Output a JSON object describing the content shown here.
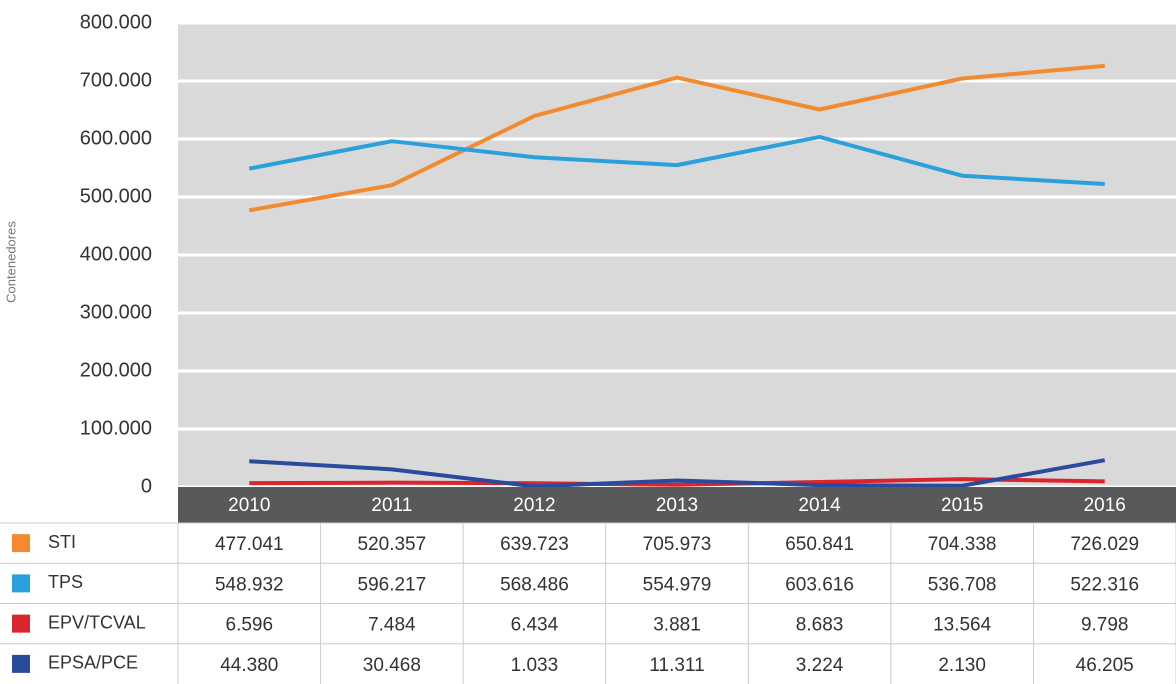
{
  "chart_data": {
    "type": "line",
    "y_label": "Contenedores",
    "categories": [
      "2010",
      "2011",
      "2012",
      "2013",
      "2014",
      "2015",
      "2016"
    ],
    "series": [
      {
        "name": "STI",
        "color": "#f28a30",
        "values": [
          477041,
          520357,
          639723,
          705973,
          650841,
          704338,
          726029
        ],
        "value_labels": [
          "477.041",
          "520.357",
          "639.723",
          "705.973",
          "650.841",
          "704.338",
          "726.029"
        ]
      },
      {
        "name": "TPS",
        "color": "#2aa0dc",
        "values": [
          548932,
          596217,
          568486,
          554979,
          603616,
          536708,
          522316
        ],
        "value_labels": [
          "548.932",
          "596.217",
          "568.486",
          "554.979",
          "603.616",
          "536.708",
          "522.316"
        ]
      },
      {
        "name": "EPV/TCVAL",
        "color": "#d9262e",
        "values": [
          6596,
          7484,
          6434,
          3881,
          8683,
          13564,
          9798
        ],
        "value_labels": [
          "6.596",
          "7.484",
          "6.434",
          "3.881",
          "8.683",
          "13.564",
          "9.798"
        ]
      },
      {
        "name": "EPSA/PCE",
        "color": "#2a4a9c",
        "values": [
          44380,
          30468,
          1033,
          11311,
          3224,
          2130,
          46205
        ],
        "value_labels": [
          "44.380",
          "30.468",
          "1.033",
          "11.311",
          "3.224",
          "2.130",
          "46.205"
        ]
      }
    ],
    "ylim": [
      0,
      800000
    ],
    "yticks": [
      0,
      {
        "value": 100000,
        "label": "100.000"
      },
      {
        "value": 200000,
        "label": "200.000"
      },
      {
        "value": 300000,
        "label": "300.000"
      },
      {
        "value": 400000,
        "label": "400.000"
      },
      {
        "value": 500000,
        "label": "500.000"
      },
      {
        "value": 600000,
        "label": "600.000"
      },
      {
        "value": 700000,
        "label": "700.000"
      },
      {
        "value": 800000,
        "label": "800.000"
      }
    ],
    "grid": true
  }
}
